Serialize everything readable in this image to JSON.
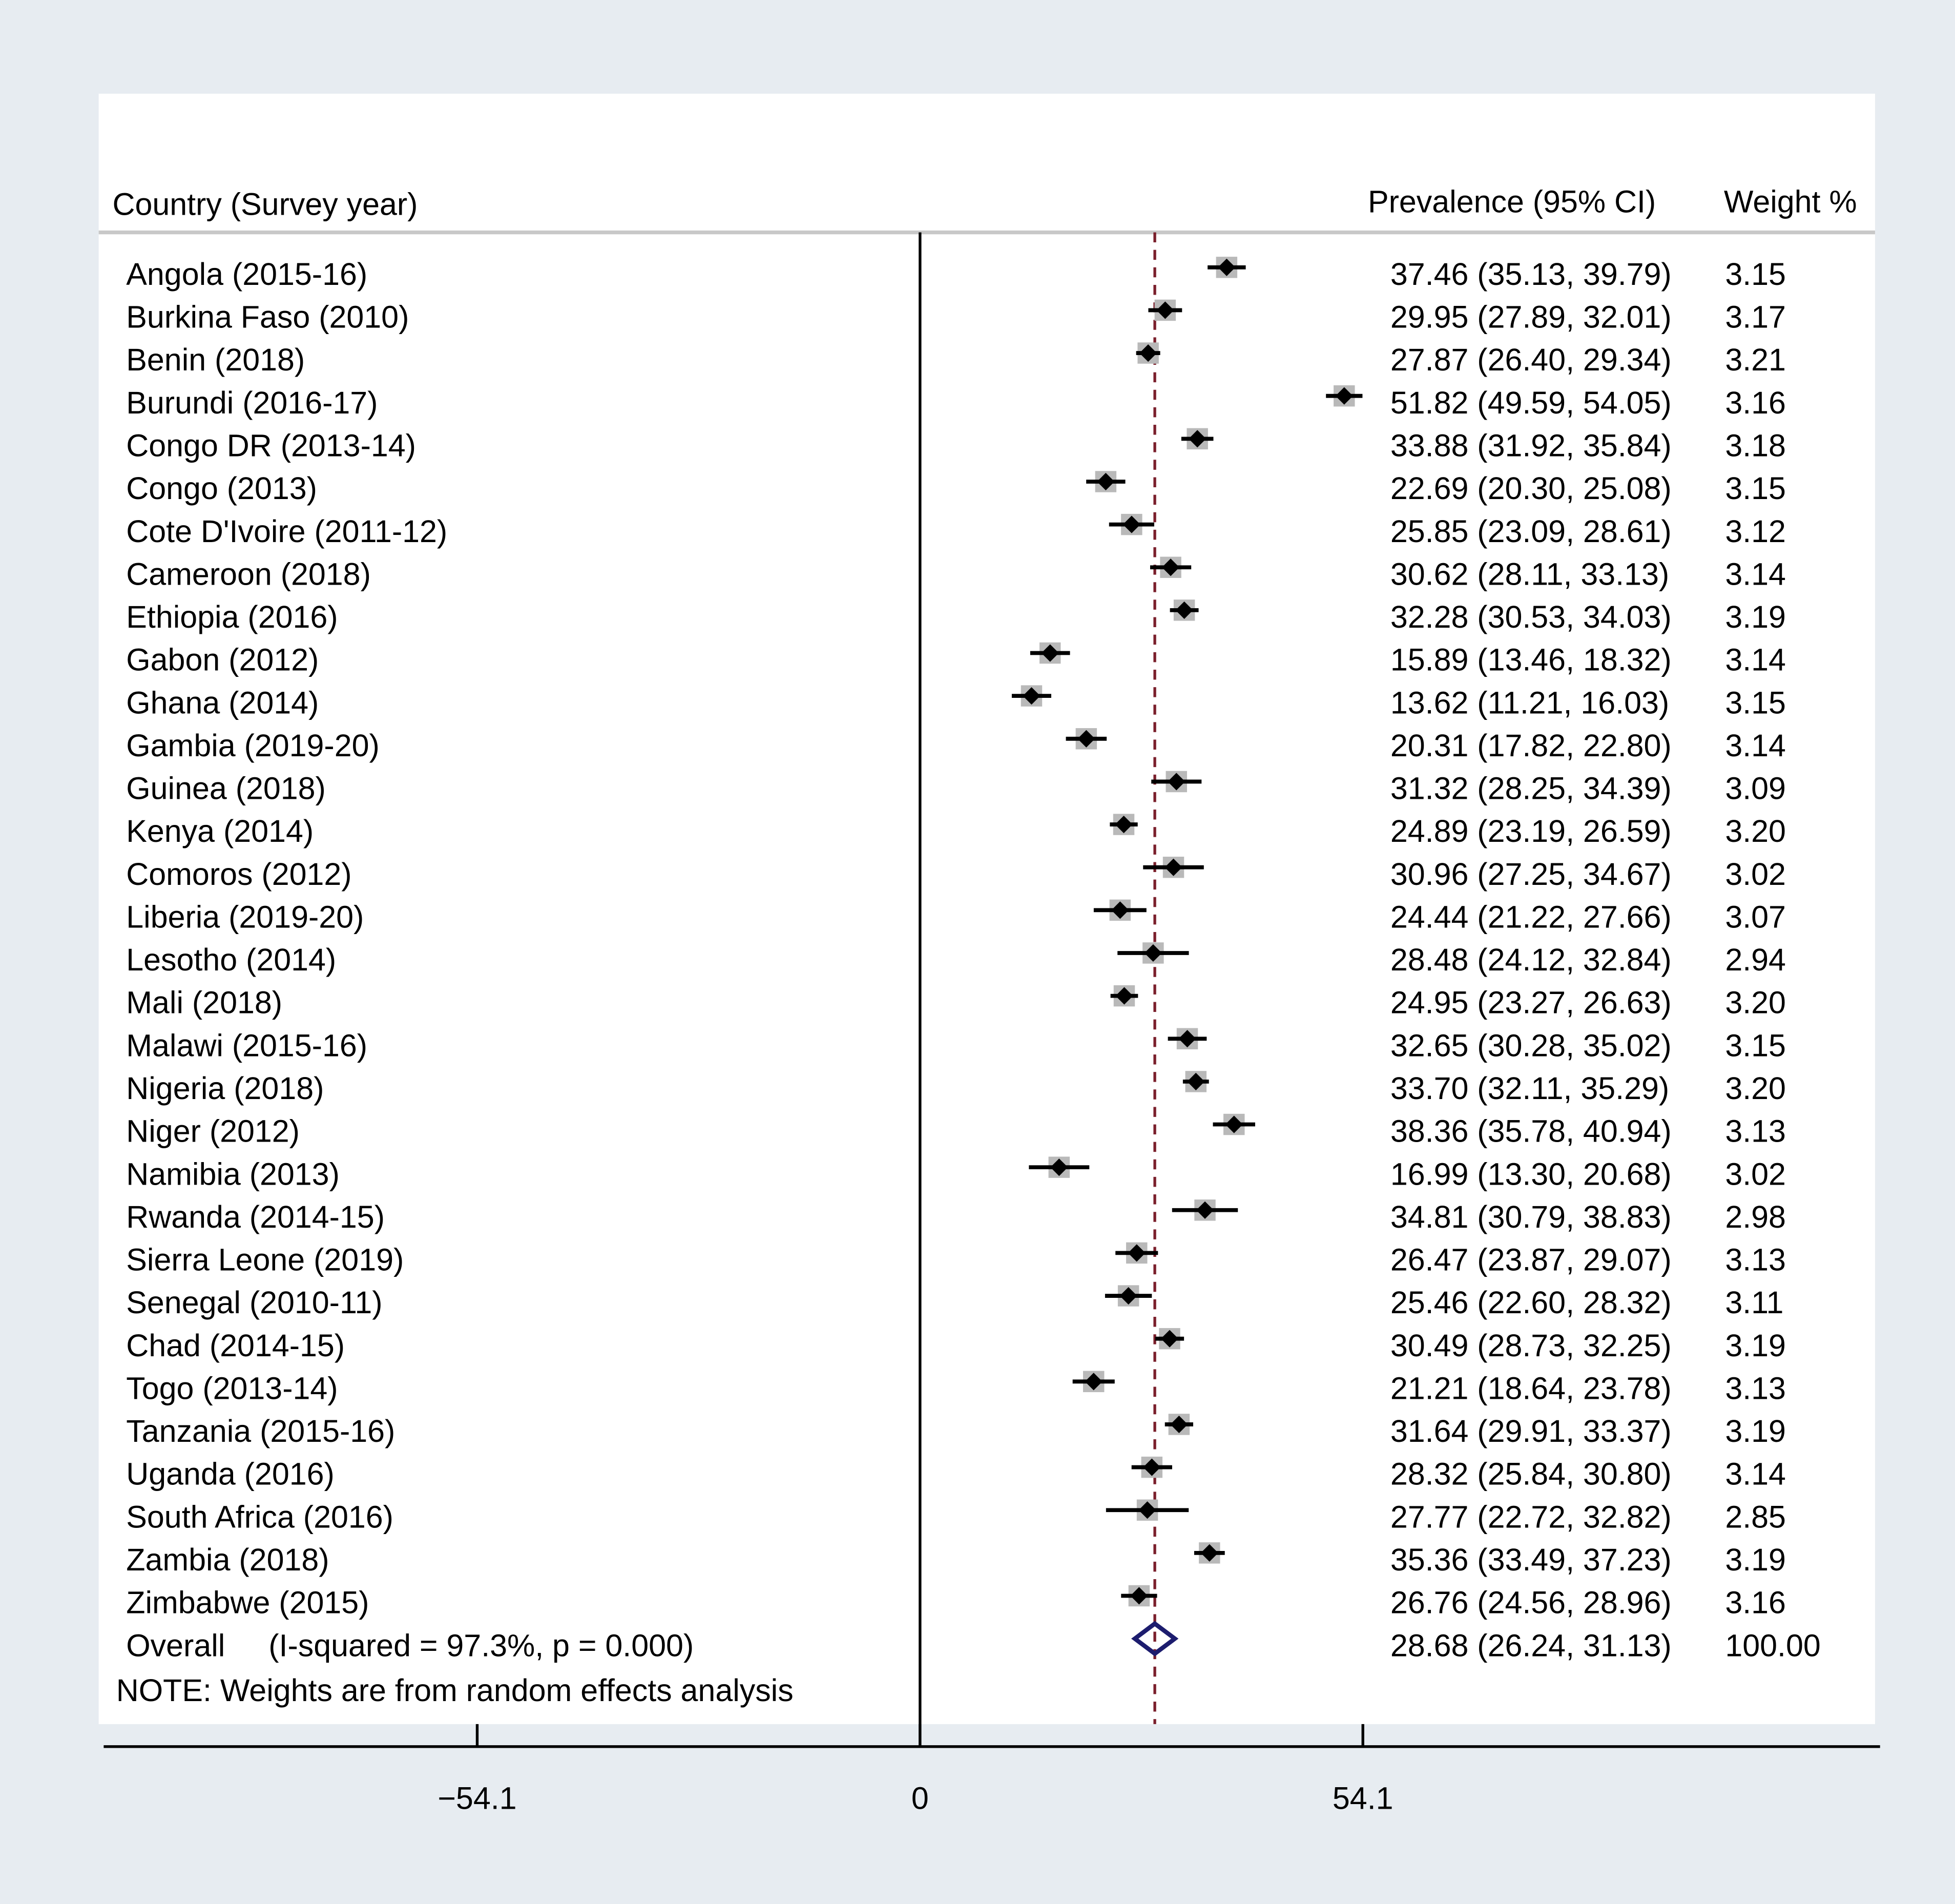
{
  "chart_data": {
    "type": "forest",
    "headers": {
      "study": "Country (Survey year)",
      "estimate": "Prevalence (95% CI)",
      "weight": "Weight %"
    },
    "studies": [
      {
        "label": "Angola (2015-16)",
        "es": 37.46,
        "lo": 35.13,
        "hi": 39.79,
        "ci_text": "37.46 (35.13, 39.79)",
        "weight": "3.15"
      },
      {
        "label": "Burkina Faso (2010)",
        "es": 29.95,
        "lo": 27.89,
        "hi": 32.01,
        "ci_text": "29.95 (27.89, 32.01)",
        "weight": "3.17"
      },
      {
        "label": "Benin (2018)",
        "es": 27.87,
        "lo": 26.4,
        "hi": 29.34,
        "ci_text": "27.87 (26.40, 29.34)",
        "weight": "3.21"
      },
      {
        "label": "Burundi (2016-17)",
        "es": 51.82,
        "lo": 49.59,
        "hi": 54.05,
        "ci_text": "51.82 (49.59, 54.05)",
        "weight": "3.16"
      },
      {
        "label": "Congo DR (2013-14)",
        "es": 33.88,
        "lo": 31.92,
        "hi": 35.84,
        "ci_text": "33.88 (31.92, 35.84)",
        "weight": "3.18"
      },
      {
        "label": "Congo (2013)",
        "es": 22.69,
        "lo": 20.3,
        "hi": 25.08,
        "ci_text": "22.69 (20.30, 25.08)",
        "weight": "3.15"
      },
      {
        "label": "Cote D'Ivoire (2011-12)",
        "es": 25.85,
        "lo": 23.09,
        "hi": 28.61,
        "ci_text": "25.85 (23.09, 28.61)",
        "weight": "3.12"
      },
      {
        "label": "Cameroon (2018)",
        "es": 30.62,
        "lo": 28.11,
        "hi": 33.13,
        "ci_text": "30.62 (28.11, 33.13)",
        "weight": "3.14"
      },
      {
        "label": "Ethiopia (2016)",
        "es": 32.28,
        "lo": 30.53,
        "hi": 34.03,
        "ci_text": "32.28 (30.53, 34.03)",
        "weight": "3.19"
      },
      {
        "label": "Gabon (2012)",
        "es": 15.89,
        "lo": 13.46,
        "hi": 18.32,
        "ci_text": "15.89 (13.46, 18.32)",
        "weight": "3.14"
      },
      {
        "label": "Ghana (2014)",
        "es": 13.62,
        "lo": 11.21,
        "hi": 16.03,
        "ci_text": "13.62 (11.21, 16.03)",
        "weight": "3.15"
      },
      {
        "label": "Gambia (2019-20)",
        "es": 20.31,
        "lo": 17.82,
        "hi": 22.8,
        "ci_text": "20.31 (17.82, 22.80)",
        "weight": "3.14"
      },
      {
        "label": "Guinea (2018)",
        "es": 31.32,
        "lo": 28.25,
        "hi": 34.39,
        "ci_text": "31.32 (28.25, 34.39)",
        "weight": "3.09"
      },
      {
        "label": "Kenya (2014)",
        "es": 24.89,
        "lo": 23.19,
        "hi": 26.59,
        "ci_text": "24.89 (23.19, 26.59)",
        "weight": "3.20"
      },
      {
        "label": "Comoros (2012)",
        "es": 30.96,
        "lo": 27.25,
        "hi": 34.67,
        "ci_text": "30.96 (27.25, 34.67)",
        "weight": "3.02"
      },
      {
        "label": "Liberia (2019-20)",
        "es": 24.44,
        "lo": 21.22,
        "hi": 27.66,
        "ci_text": "24.44 (21.22, 27.66)",
        "weight": "3.07"
      },
      {
        "label": "Lesotho (2014)",
        "es": 28.48,
        "lo": 24.12,
        "hi": 32.84,
        "ci_text": "28.48 (24.12, 32.84)",
        "weight": "2.94"
      },
      {
        "label": "Mali (2018)",
        "es": 24.95,
        "lo": 23.27,
        "hi": 26.63,
        "ci_text": "24.95 (23.27, 26.63)",
        "weight": "3.20"
      },
      {
        "label": "Malawi (2015-16)",
        "es": 32.65,
        "lo": 30.28,
        "hi": 35.02,
        "ci_text": "32.65 (30.28, 35.02)",
        "weight": "3.15"
      },
      {
        "label": "Nigeria (2018)",
        "es": 33.7,
        "lo": 32.11,
        "hi": 35.29,
        "ci_text": "33.70 (32.11, 35.29)",
        "weight": "3.20"
      },
      {
        "label": "Niger (2012)",
        "es": 38.36,
        "lo": 35.78,
        "hi": 40.94,
        "ci_text": "38.36 (35.78, 40.94)",
        "weight": "3.13"
      },
      {
        "label": "Namibia (2013)",
        "es": 16.99,
        "lo": 13.3,
        "hi": 20.68,
        "ci_text": "16.99 (13.30, 20.68)",
        "weight": "3.02"
      },
      {
        "label": "Rwanda (2014-15)",
        "es": 34.81,
        "lo": 30.79,
        "hi": 38.83,
        "ci_text": "34.81 (30.79, 38.83)",
        "weight": "2.98"
      },
      {
        "label": "Sierra Leone (2019)",
        "es": 26.47,
        "lo": 23.87,
        "hi": 29.07,
        "ci_text": "26.47 (23.87, 29.07)",
        "weight": "3.13"
      },
      {
        "label": "Senegal (2010-11)",
        "es": 25.46,
        "lo": 22.6,
        "hi": 28.32,
        "ci_text": "25.46 (22.60, 28.32)",
        "weight": "3.11"
      },
      {
        "label": "Chad (2014-15)",
        "es": 30.49,
        "lo": 28.73,
        "hi": 32.25,
        "ci_text": "30.49 (28.73, 32.25)",
        "weight": "3.19"
      },
      {
        "label": "Togo (2013-14)",
        "es": 21.21,
        "lo": 18.64,
        "hi": 23.78,
        "ci_text": "21.21 (18.64, 23.78)",
        "weight": "3.13"
      },
      {
        "label": "Tanzania (2015-16)",
        "es": 31.64,
        "lo": 29.91,
        "hi": 33.37,
        "ci_text": "31.64 (29.91, 33.37)",
        "weight": "3.19"
      },
      {
        "label": "Uganda (2016)",
        "es": 28.32,
        "lo": 25.84,
        "hi": 30.8,
        "ci_text": "28.32 (25.84, 30.80)",
        "weight": "3.14"
      },
      {
        "label": "South Africa (2016)",
        "es": 27.77,
        "lo": 22.72,
        "hi": 32.82,
        "ci_text": "27.77 (22.72, 32.82)",
        "weight": "2.85"
      },
      {
        "label": "Zambia (2018)",
        "es": 35.36,
        "lo": 33.49,
        "hi": 37.23,
        "ci_text": "35.36 (33.49, 37.23)",
        "weight": "3.19"
      },
      {
        "label": "Zimbabwe (2015)",
        "es": 26.76,
        "lo": 24.56,
        "hi": 28.96,
        "ci_text": "26.76 (24.56, 28.96)",
        "weight": "3.16"
      }
    ],
    "overall": {
      "label": "Overall",
      "stats": "(I-squared = 97.3%, p = 0.000)",
      "es": 28.68,
      "lo": 26.24,
      "hi": 31.13,
      "ci_text": "28.68 (26.24, 31.13)",
      "weight": "100.00"
    },
    "note": "NOTE: Weights are from random effects analysis",
    "x_ticks": [
      {
        "value": -54.1,
        "label": "−54.1"
      },
      {
        "value": 0,
        "label": "0"
      },
      {
        "value": 54.1,
        "label": "54.1"
      }
    ],
    "null_line": 0,
    "reference_line": 28.68,
    "colors": {
      "background": "#e7ecf1",
      "panel": "#ffffff",
      "marker": "#000000",
      "weight_box": "#b9b9b9",
      "overall_diamond": "#1c1c6e",
      "reference_line": "#7a1f2b"
    }
  }
}
